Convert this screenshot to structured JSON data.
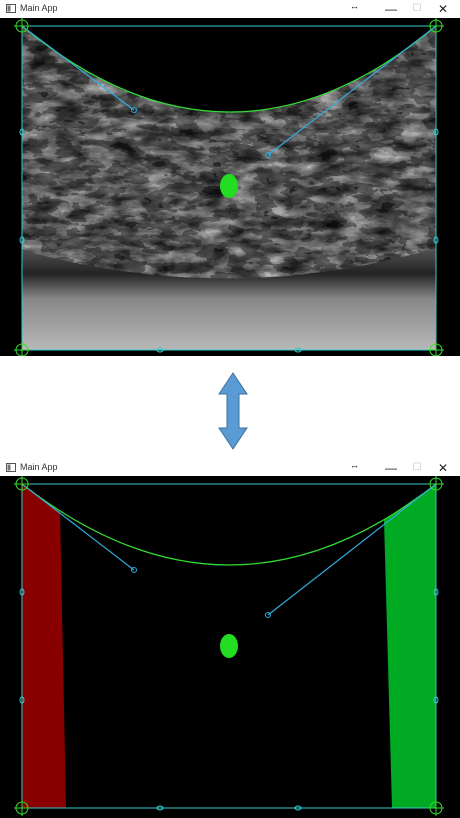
{
  "windows": [
    {
      "title": "Main App",
      "extra_glyph": "↔",
      "controls": {
        "minimize": "—",
        "maximize": "☐",
        "close": "✕"
      },
      "mode": "textured"
    },
    {
      "title": "Main App",
      "extra_glyph": "↔",
      "controls": {
        "minimize": "—",
        "maximize": "☐",
        "close": "✕"
      },
      "mode": "regions"
    }
  ],
  "colors": {
    "frame": "#33cccc",
    "curve": "#33dd33",
    "handle_line": "#33aadd",
    "center_dot": "#22dd22",
    "left_region": "#880000",
    "right_region": "#00aa22",
    "arrow": "#5b9bd5"
  },
  "connector_icon": "double-headed-vertical-arrow-icon"
}
